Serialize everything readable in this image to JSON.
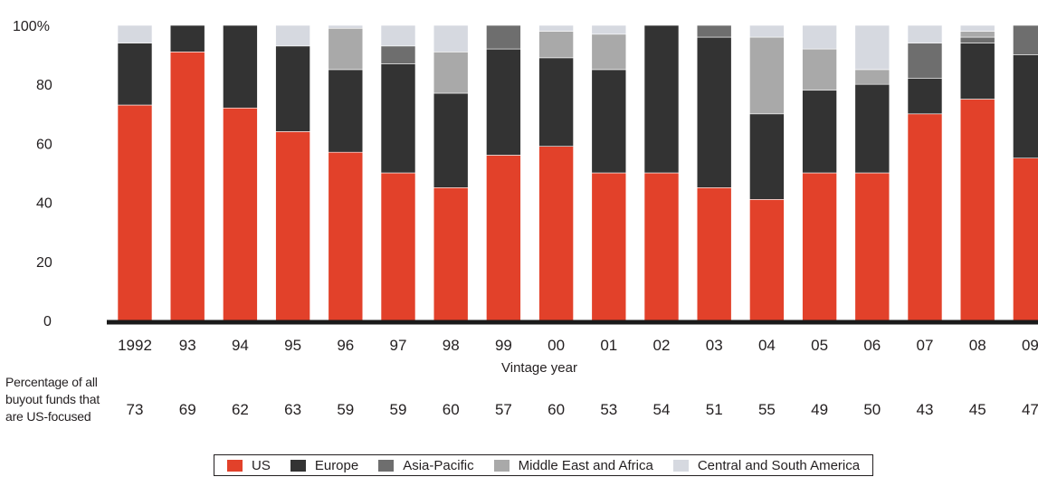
{
  "chart_data": {
    "type": "bar",
    "stacked": true,
    "ylabel": "",
    "ylim": [
      0,
      100
    ],
    "yticks": [
      "0",
      "20",
      "40",
      "60",
      "80",
      "100%"
    ],
    "xlabel": "Vintage year",
    "categories": [
      "1992",
      "93",
      "94",
      "95",
      "96",
      "97",
      "98",
      "99",
      "00",
      "01",
      "02",
      "03",
      "04",
      "05",
      "06",
      "07",
      "08",
      "09"
    ],
    "series": [
      {
        "name": "US",
        "color": "#e2412a",
        "values": [
          73,
          91,
          72,
          64,
          57,
          50,
          45,
          56,
          59,
          50,
          50,
          45,
          41,
          50,
          50,
          70,
          75,
          55
        ]
      },
      {
        "name": "Europe",
        "color": "#333333",
        "values": [
          21,
          9,
          28,
          29,
          28,
          37,
          32,
          36,
          30,
          35,
          50,
          51,
          29,
          28,
          30,
          12,
          19,
          35
        ]
      },
      {
        "name": "Asia-Pacific",
        "color": "#6e6e6e",
        "values": [
          0,
          0,
          0,
          0,
          0,
          6,
          0,
          8,
          0,
          0,
          0,
          4,
          0,
          0,
          0,
          12,
          2,
          10
        ]
      },
      {
        "name": "Middle East and Africa",
        "color": "#a9a9a9",
        "values": [
          0,
          0,
          0,
          0,
          14,
          0,
          14,
          0,
          9,
          12,
          0,
          0,
          26,
          14,
          5,
          0,
          2,
          0
        ]
      },
      {
        "name": "Central and South America",
        "color": "#d6d9e0",
        "values": [
          6,
          0,
          0,
          7,
          1,
          7,
          9,
          0,
          2,
          3,
          0,
          0,
          4,
          8,
          15,
          6,
          2,
          0
        ]
      }
    ],
    "legend_position": "bottom",
    "grid": false
  },
  "percentage_row": {
    "label": "Percentage of all buyout funds that are US-focused",
    "values": [
      "73",
      "69",
      "62",
      "63",
      "59",
      "59",
      "60",
      "57",
      "60",
      "53",
      "54",
      "51",
      "55",
      "49",
      "50",
      "43",
      "45",
      "47"
    ]
  }
}
